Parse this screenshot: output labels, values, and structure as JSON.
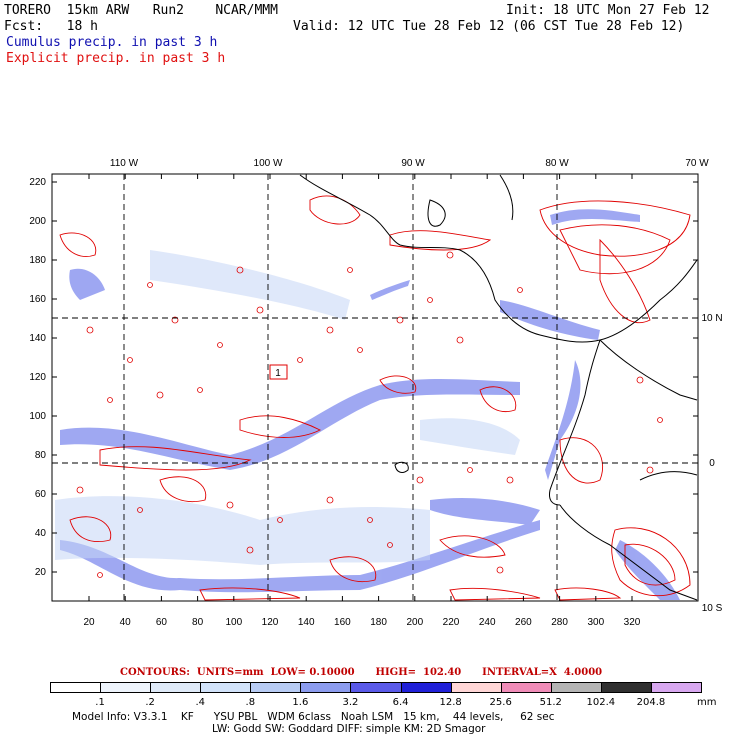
{
  "header": {
    "model_line": "TORERO  15km ARW   Run2    NCAR/MMM",
    "fcst_line": "Fcst:   18 h",
    "init": "Init: 18 UTC Mon 27 Feb 12",
    "valid": "Valid: 12 UTC Tue 28 Feb 12 (06 CST Tue 28 Feb 12)",
    "field1": "Cumulus precip. in past 3 h",
    "field2": "Explicit precip. in past 3 h"
  },
  "map": {
    "lon_labels": [
      "110 W",
      "100 W",
      "90 W",
      "80 W",
      "70 W"
    ],
    "lat_labels": [
      "10 N",
      "0",
      "10 S"
    ],
    "y_ticks": [
      "220",
      "200",
      "180",
      "160",
      "140",
      "120",
      "100",
      "80",
      "60",
      "40",
      "20"
    ],
    "x_ticks": [
      "20",
      "40",
      "60",
      "80",
      "100",
      "120",
      "140",
      "160",
      "180",
      "200",
      "220",
      "240",
      "260",
      "280",
      "300",
      "320"
    ],
    "marker": "1",
    "colors": {
      "cumulus": "#3030e0",
      "explicit": "#e00000",
      "grid": "#000000"
    }
  },
  "contours_info": "CONTOURS:  UNITS=mm  LOW= 0.10000      HIGH=  102.40      INTERVAL=X  4.0000",
  "colorbar": {
    "labels": [
      ".1",
      ".2",
      ".4",
      ".8",
      "1.6",
      "3.2",
      "6.4",
      "12.8",
      "25.6",
      "51.2",
      "102.4",
      "204.8"
    ],
    "colors": [
      "#ffffff",
      "#eef4fc",
      "#dfeaf8",
      "#d2e3fa",
      "#b8ccf4",
      "#8c9cee",
      "#5a5ae8",
      "#2020d8",
      "#ffd6d6",
      "#f08cb8",
      "#b4b4b4",
      "#303030",
      "#d8a8f0"
    ],
    "unit": "mm"
  },
  "model_info_1": "Model Info: V3.3.1    KF      YSU PBL   WDM 6class   Noah LSM   15 km,    44 levels,     62 sec",
  "model_info_2": "LW: Godd SW: Goddard DIFF: simple KM: 2D Smagor"
}
